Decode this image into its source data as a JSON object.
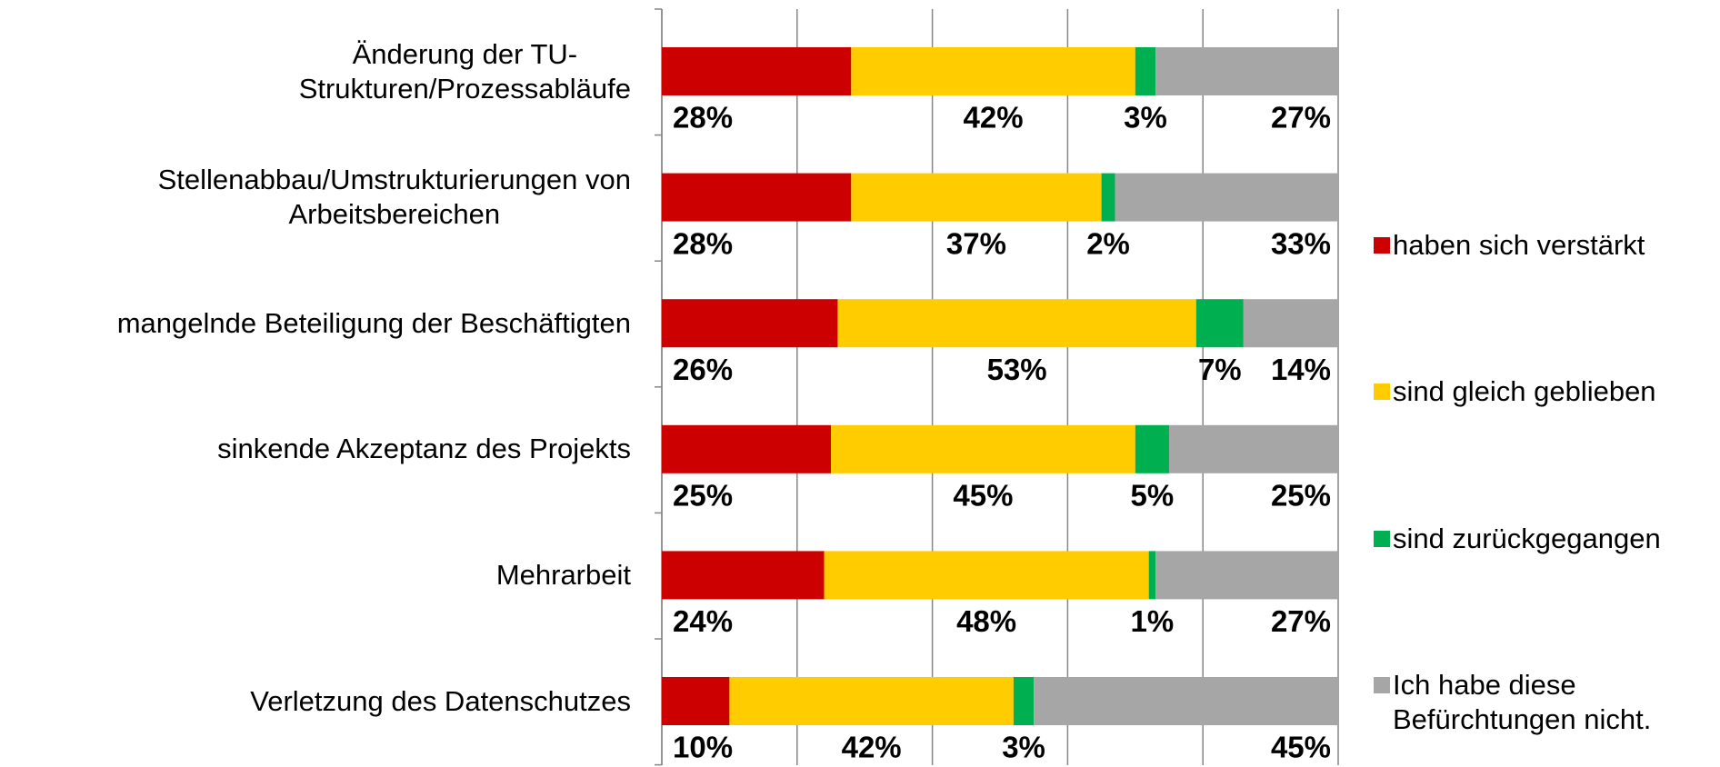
{
  "chart_data": {
    "type": "stacked_barh",
    "categories": [
      "Änderung der TU-\nStrukturen/Prozessabläufe",
      "Stellenabbau/Umstrukturierungen von\nArbeitsbereichen",
      "mangelnde Beteiligung der Beschäftigten",
      "sinkende Akzeptanz des Projekts",
      "Mehrarbeit",
      "Verletzung des Datenschutzes"
    ],
    "series": [
      {
        "name": "haben sich verstärkt",
        "color": "#cc0000",
        "values": [
          28,
          28,
          26,
          25,
          24,
          10
        ]
      },
      {
        "name": "sind gleich geblieben",
        "color": "#ffcc00",
        "values": [
          42,
          37,
          53,
          45,
          48,
          42
        ]
      },
      {
        "name": "sind zurückgegangen",
        "color": "#00b050",
        "values": [
          3,
          2,
          7,
          5,
          1,
          3
        ]
      },
      {
        "name": "Ich habe diese\nBefürchtungen nicht.",
        "color": "#a6a6a6",
        "values": [
          27,
          33,
          14,
          25,
          27,
          45
        ]
      }
    ],
    "value_labels": [
      [
        "28%",
        "28%",
        "26%",
        "25%",
        "24%",
        "10%"
      ],
      [
        "42%",
        "37%",
        "53%",
        "45%",
        "48%",
        "42%"
      ],
      [
        "3%",
        "2%",
        "7%",
        "5%",
        "1%",
        "3%"
      ],
      [
        "27%",
        "33%",
        "14%",
        "25%",
        "27%",
        "45%"
      ]
    ],
    "xlim": [
      0,
      100
    ],
    "xticks": [
      0,
      20,
      40,
      60,
      80,
      100
    ],
    "grid": true,
    "legend": "right"
  }
}
